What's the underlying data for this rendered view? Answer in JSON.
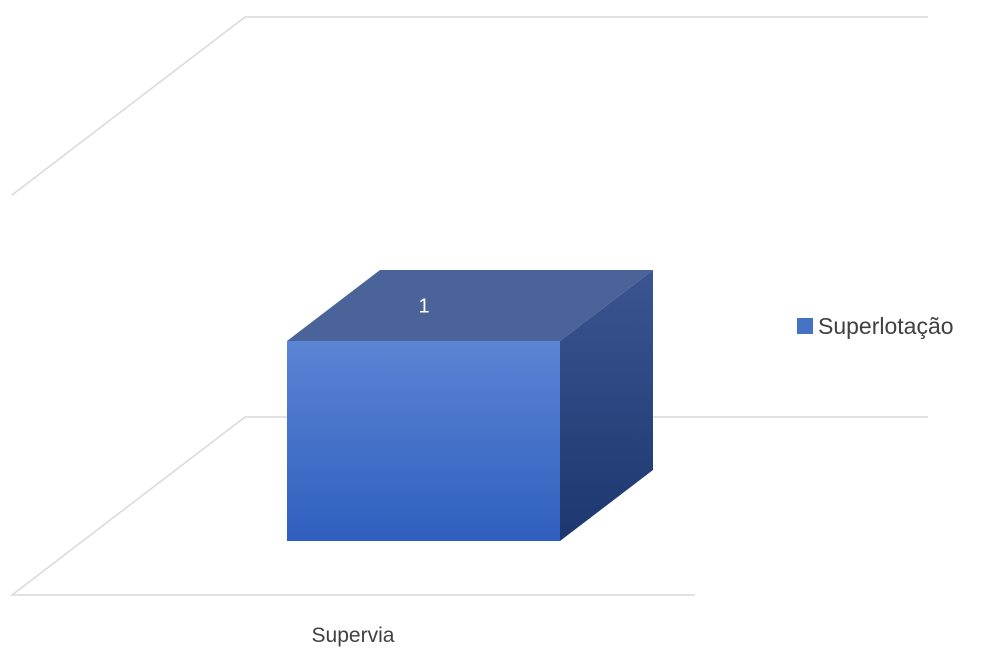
{
  "chart_data": {
    "type": "bar",
    "categories": [
      "Supervia"
    ],
    "series": [
      {
        "name": "Superlotação",
        "values": [
          1
        ]
      }
    ],
    "ylim": [
      0,
      2
    ],
    "grid": true,
    "legend_position": "right",
    "colors": {
      "front_top": "#5b84d4",
      "front_bottom": "#2f5fbe",
      "top": "#4a6399",
      "side_top": "#3a5590",
      "side_bottom": "#1d3770",
      "legend_swatch": "#4472c4",
      "grid": "#d9d9d9",
      "text": "#404040"
    }
  }
}
